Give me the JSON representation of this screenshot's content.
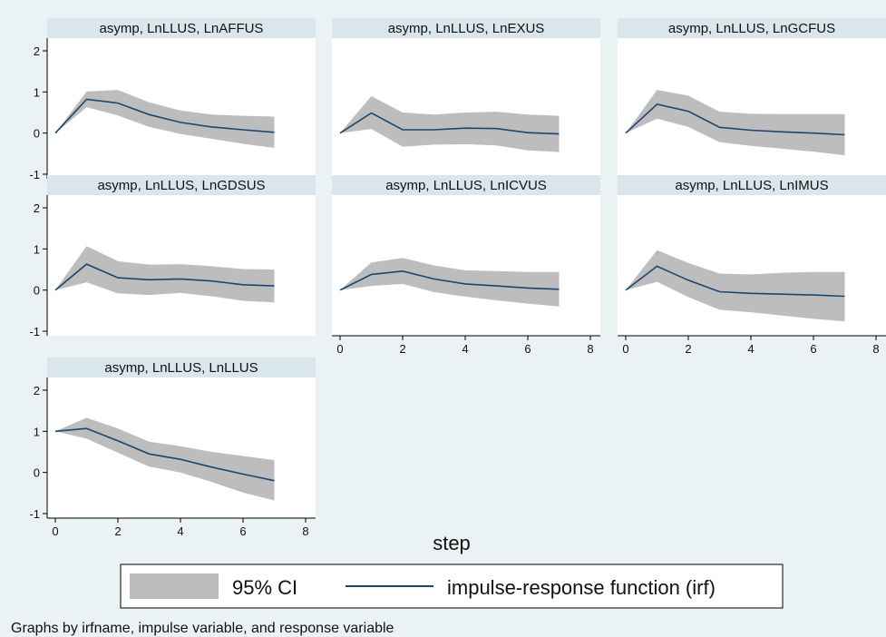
{
  "colors": {
    "outer_background": "#eaf2f3",
    "plot_background": "#ffffff",
    "title_strip": "#d9e6eb",
    "ci_band": "#bdbdbd",
    "irf_line": "#1a476f",
    "axis": "#000000"
  },
  "x_axis_title": "step",
  "legend": {
    "ci_label": "95% CI",
    "irf_label": "impulse-response function (irf)"
  },
  "note": "Graphs by irfname, impulse variable, and response variable",
  "chart_data": [
    {
      "type": "area",
      "title": "asymp, LnLLUS, LnAFFUS",
      "x": [
        0,
        1,
        2,
        3,
        4,
        5,
        6,
        7
      ],
      "irf": [
        0,
        0.82,
        0.73,
        0.45,
        0.26,
        0.15,
        0.08,
        0.02
      ],
      "ci_lower": [
        0,
        0.63,
        0.43,
        0.15,
        -0.02,
        -0.14,
        -0.26,
        -0.36
      ],
      "ci_upper": [
        0,
        1.01,
        1.05,
        0.75,
        0.55,
        0.45,
        0.42,
        0.4
      ],
      "xlim": [
        0,
        8
      ],
      "ylim": [
        -1,
        2
      ],
      "x_ticks": [
        0,
        2,
        4,
        6,
        8
      ],
      "y_ticks": [
        -1,
        0,
        1,
        2
      ],
      "show_x_axis": false,
      "show_y_axis": true
    },
    {
      "type": "area",
      "title": "asymp, LnLLUS, LnEXUS",
      "x": [
        0,
        1,
        2,
        3,
        4,
        5,
        6,
        7
      ],
      "irf": [
        0,
        0.49,
        0.08,
        0.08,
        0.12,
        0.11,
        0.01,
        -0.02
      ],
      "ci_lower": [
        0,
        0.1,
        -0.33,
        -0.28,
        -0.27,
        -0.3,
        -0.42,
        -0.46
      ],
      "ci_upper": [
        0,
        0.9,
        0.5,
        0.45,
        0.5,
        0.52,
        0.45,
        0.42
      ],
      "xlim": [
        0,
        8
      ],
      "ylim": [
        -1,
        2
      ],
      "x_ticks": [
        0,
        2,
        4,
        6,
        8
      ],
      "y_ticks": [
        -1,
        0,
        1,
        2
      ],
      "show_x_axis": false,
      "show_y_axis": false
    },
    {
      "type": "area",
      "title": "asymp, LnLLUS, LnGCFUS",
      "x": [
        0,
        1,
        2,
        3,
        4,
        5,
        6,
        7
      ],
      "irf": [
        0,
        0.7,
        0.53,
        0.14,
        0.07,
        0.03,
        0.0,
        -0.04
      ],
      "ci_lower": [
        0,
        0.35,
        0.15,
        -0.22,
        -0.31,
        -0.38,
        -0.45,
        -0.54
      ],
      "ci_upper": [
        0,
        1.05,
        0.91,
        0.52,
        0.47,
        0.46,
        0.46,
        0.46
      ],
      "xlim": [
        0,
        8
      ],
      "ylim": [
        -1,
        2
      ],
      "x_ticks": [
        0,
        2,
        4,
        6,
        8
      ],
      "y_ticks": [
        -1,
        0,
        1,
        2
      ],
      "show_x_axis": false,
      "show_y_axis": false
    },
    {
      "type": "area",
      "title": "asymp, LnLLUS, LnGDSUS",
      "x": [
        0,
        1,
        2,
        3,
        4,
        5,
        6,
        7
      ],
      "irf": [
        0,
        0.63,
        0.3,
        0.25,
        0.27,
        0.22,
        0.13,
        0.1
      ],
      "ci_lower": [
        0,
        0.19,
        -0.08,
        -0.12,
        -0.07,
        -0.15,
        -0.26,
        -0.3
      ],
      "ci_upper": [
        0,
        1.07,
        0.7,
        0.62,
        0.63,
        0.58,
        0.51,
        0.5
      ],
      "xlim": [
        0,
        8
      ],
      "ylim": [
        -1,
        2
      ],
      "x_ticks": [
        0,
        2,
        4,
        6,
        8
      ],
      "y_ticks": [
        -1,
        0,
        1,
        2
      ],
      "show_x_axis": false,
      "show_y_axis": true
    },
    {
      "type": "area",
      "title": "asymp, LnLLUS, LnICVUS",
      "x": [
        0,
        1,
        2,
        3,
        4,
        5,
        6,
        7
      ],
      "irf": [
        0,
        0.38,
        0.46,
        0.27,
        0.15,
        0.1,
        0.05,
        0.02
      ],
      "ci_lower": [
        0,
        0.1,
        0.15,
        -0.05,
        -0.16,
        -0.25,
        -0.33,
        -0.4
      ],
      "ci_upper": [
        0,
        0.67,
        0.78,
        0.6,
        0.48,
        0.46,
        0.44,
        0.44
      ],
      "xlim": [
        0,
        8
      ],
      "ylim": [
        -1,
        2
      ],
      "x_ticks": [
        0,
        2,
        4,
        6,
        8
      ],
      "y_ticks": [
        -1,
        0,
        1,
        2
      ],
      "show_x_axis": true,
      "show_y_axis": false
    },
    {
      "type": "area",
      "title": "asymp, LnLLUS, LnIMUS",
      "x": [
        0,
        1,
        2,
        3,
        4,
        5,
        6,
        7
      ],
      "irf": [
        0,
        0.58,
        0.24,
        -0.04,
        -0.08,
        -0.1,
        -0.12,
        -0.15
      ],
      "ci_lower": [
        0,
        0.2,
        -0.17,
        -0.48,
        -0.54,
        -0.62,
        -0.7,
        -0.76
      ],
      "ci_upper": [
        0,
        0.97,
        0.66,
        0.4,
        0.38,
        0.42,
        0.44,
        0.44
      ],
      "xlim": [
        0,
        8
      ],
      "ylim": [
        -1,
        2
      ],
      "x_ticks": [
        0,
        2,
        4,
        6,
        8
      ],
      "y_ticks": [
        -1,
        0,
        1,
        2
      ],
      "show_x_axis": true,
      "show_y_axis": false
    },
    {
      "type": "area",
      "title": "asymp, LnLLUS, LnLLUS",
      "x": [
        0,
        1,
        2,
        3,
        4,
        5,
        6,
        7
      ],
      "irf": [
        1,
        1.07,
        0.77,
        0.45,
        0.32,
        0.13,
        -0.04,
        -0.2
      ],
      "ci_lower": [
        1,
        0.82,
        0.48,
        0.14,
        0.0,
        -0.23,
        -0.49,
        -0.68
      ],
      "ci_upper": [
        1,
        1.33,
        1.07,
        0.75,
        0.64,
        0.5,
        0.4,
        0.3
      ],
      "xlim": [
        0,
        8
      ],
      "ylim": [
        -1,
        2
      ],
      "x_ticks": [
        0,
        2,
        4,
        6,
        8
      ],
      "y_ticks": [
        -1,
        0,
        1,
        2
      ],
      "show_x_axis": true,
      "show_y_axis": true
    }
  ]
}
